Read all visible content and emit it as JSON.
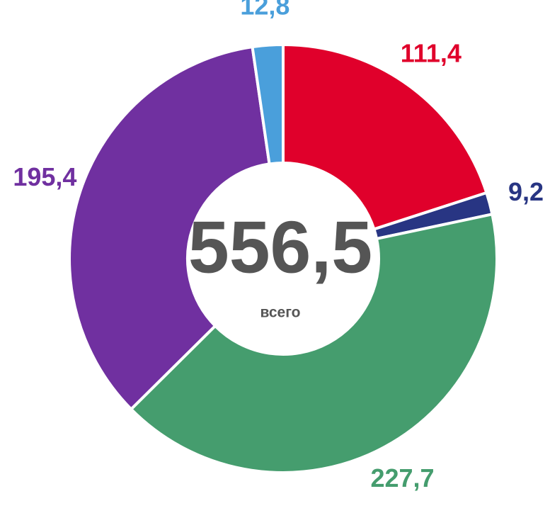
{
  "chart_data": {
    "type": "donut",
    "values": [
      111.4,
      9.2,
      227.7,
      195.4,
      12.8
    ],
    "value_labels": [
      "111,4",
      "9,2",
      "227,7",
      "195,4",
      "12,8"
    ],
    "colors": [
      "#e0002b",
      "#283583",
      "#459d6e",
      "#7030a0",
      "#4a9fdb"
    ],
    "center_text": "556,5",
    "center_subtext": "всего"
  }
}
